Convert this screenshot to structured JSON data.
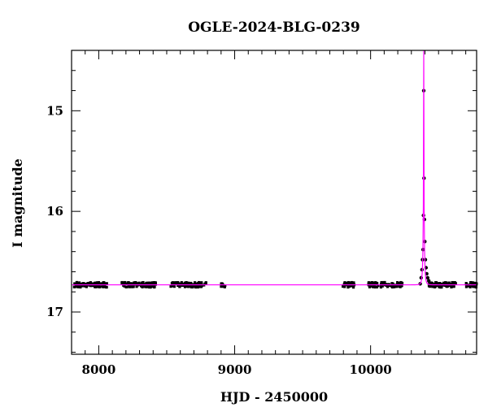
{
  "chart_data": {
    "type": "scatter",
    "title": "OGLE-2024-BLG-0239",
    "xlabel": "HJD - 2450000",
    "ylabel": "I magnitude",
    "xlim": [
      7800,
      10780
    ],
    "ylim": [
      17.42,
      14.4
    ],
    "y_inverted": true,
    "x_major_ticks": [
      8000,
      9000,
      10000
    ],
    "x_tick_labels": [
      "8000",
      "9000",
      "10000"
    ],
    "y_major_ticks": [
      15,
      16,
      17
    ],
    "y_tick_labels": [
      "15",
      "16",
      "17"
    ],
    "grid": false,
    "legend": "none",
    "colors": {
      "data": "#000000",
      "model": "#ff00ff"
    },
    "baseline_mag": 16.73,
    "seasons": [
      {
        "start": 7820,
        "end": 8060
      },
      {
        "start": 8170,
        "end": 8420
      },
      {
        "start": 8530,
        "end": 8790
      },
      {
        "start": 8900,
        "end": 8930
      },
      {
        "start": 9795,
        "end": 9880
      },
      {
        "start": 9985,
        "end": 10240
      },
      {
        "start": 10430,
        "end": 10630
      },
      {
        "start": 10700,
        "end": 10780
      }
    ],
    "event_points": [
      {
        "x": 10365,
        "y": 16.72
      },
      {
        "x": 10372,
        "y": 16.66
      },
      {
        "x": 10378,
        "y": 16.58
      },
      {
        "x": 10382,
        "y": 16.48
      },
      {
        "x": 10386,
        "y": 16.38
      },
      {
        "x": 10389,
        "y": 16.04
      },
      {
        "x": 10391,
        "y": 14.8
      },
      {
        "x": 10393,
        "y": 15.67
      },
      {
        "x": 10396,
        "y": 16.08
      },
      {
        "x": 10399,
        "y": 16.3
      },
      {
        "x": 10403,
        "y": 16.48
      },
      {
        "x": 10408,
        "y": 16.56
      },
      {
        "x": 10413,
        "y": 16.62
      },
      {
        "x": 10420,
        "y": 16.66
      },
      {
        "x": 10428,
        "y": 16.69
      }
    ],
    "model": {
      "t0": 10391,
      "peak_mag": 14.4,
      "tE": 10,
      "u0": 0.055
    }
  }
}
